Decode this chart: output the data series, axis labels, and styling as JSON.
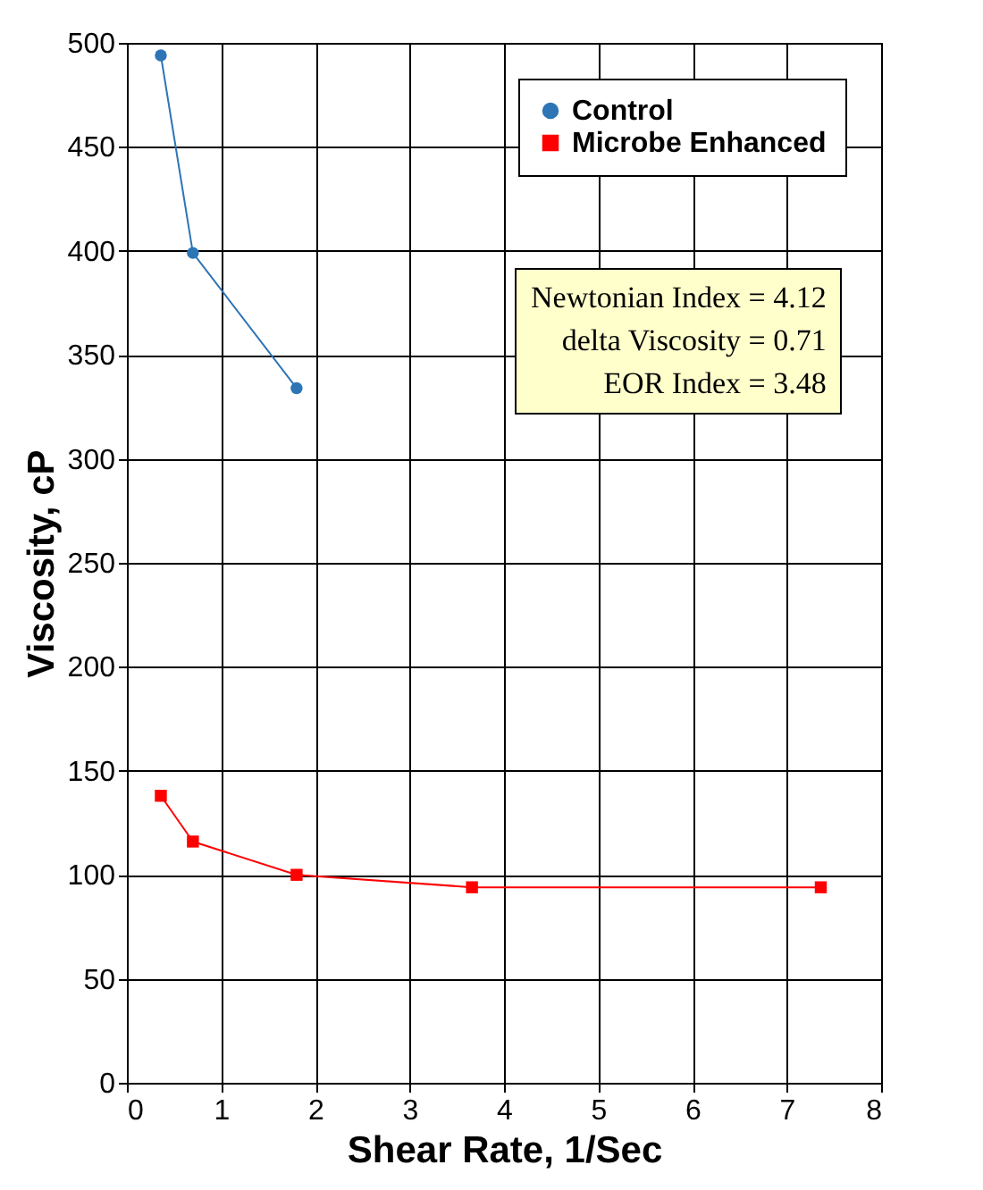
{
  "chart_data": {
    "type": "line",
    "xlabel": "Shear Rate, 1/Sec",
    "ylabel": "Viscosity, cP",
    "xlim": [
      0,
      8
    ],
    "xticks": [
      0,
      1,
      2,
      3,
      4,
      5,
      6,
      7,
      8
    ],
    "ylim": [
      0,
      500
    ],
    "yticks": [
      0,
      50,
      100,
      150,
      200,
      250,
      300,
      350,
      400,
      450,
      500
    ],
    "grid": true,
    "legend": "top right",
    "series": [
      {
        "name": "Control",
        "color": "#2e75b6",
        "marker": "circle",
        "x": [
          0.36,
          0.7,
          1.8
        ],
        "values": [
          494,
          399,
          334
        ]
      },
      {
        "name": "Microbe Enhanced",
        "color": "#ff0000",
        "marker": "square",
        "x": [
          0.36,
          0.7,
          1.8,
          3.66,
          7.36
        ],
        "values": [
          138,
          116,
          100,
          94,
          94
        ]
      }
    ],
    "annotations": [
      "Newtonian Index = 4.12",
      "delta Viscosity = 0.71",
      "EOR Index = 3.48"
    ]
  }
}
